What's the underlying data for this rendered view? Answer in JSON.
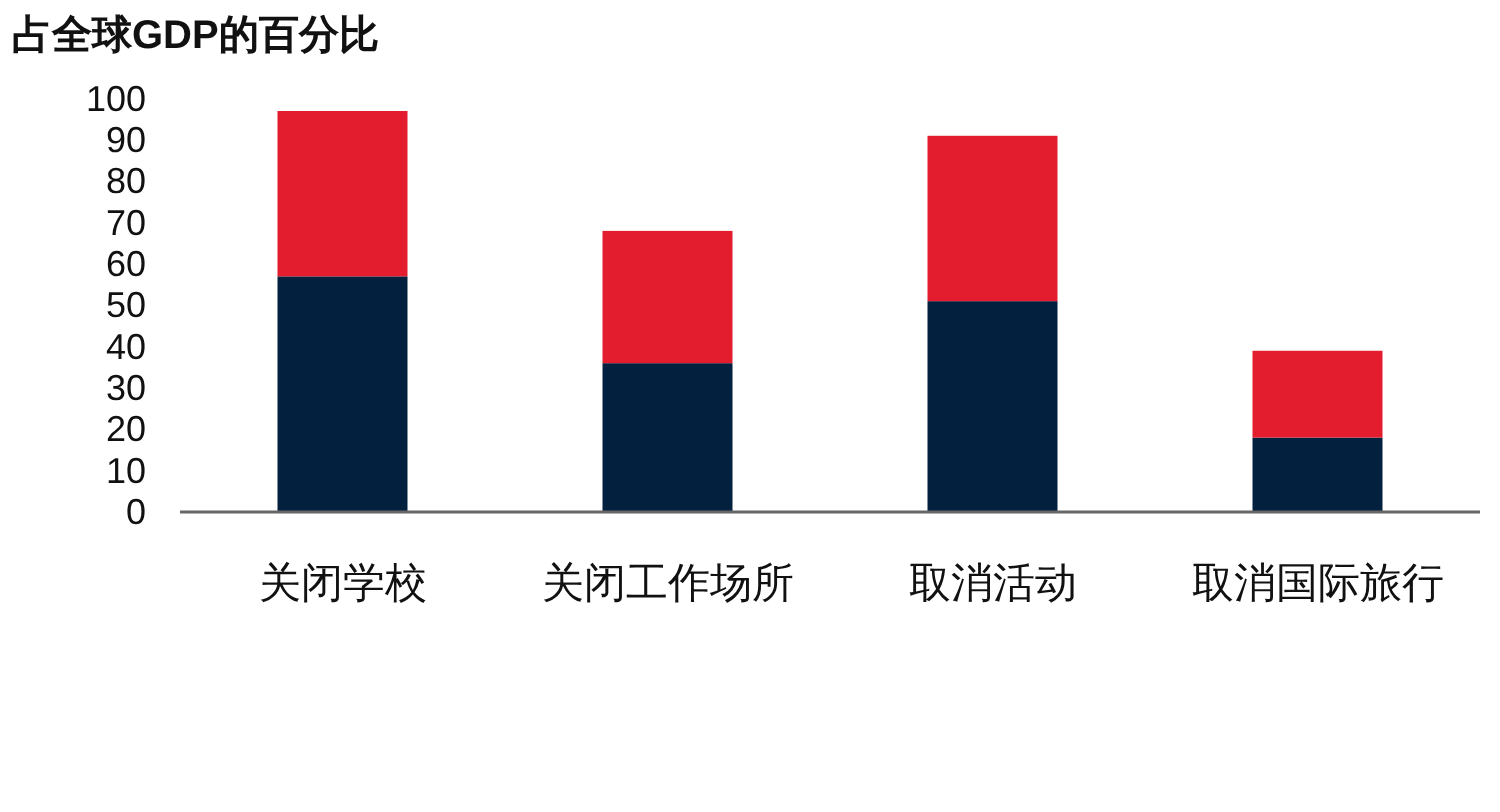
{
  "chart_data": {
    "type": "bar",
    "title": "占全球GDP的百分比",
    "stacked": true,
    "categories": [
      "关闭学校",
      "关闭工作场所",
      "取消活动",
      "取消国际旅行"
    ],
    "series": [
      {
        "color": "#04203f",
        "values": [
          57,
          36,
          51,
          18
        ]
      },
      {
        "color": "#e31c2e",
        "values": [
          40,
          32,
          40,
          21
        ]
      }
    ],
    "ylim": [
      0,
      100
    ],
    "yticks": [
      0,
      10,
      20,
      30,
      40,
      50,
      60,
      70,
      80,
      90,
      100
    ]
  }
}
